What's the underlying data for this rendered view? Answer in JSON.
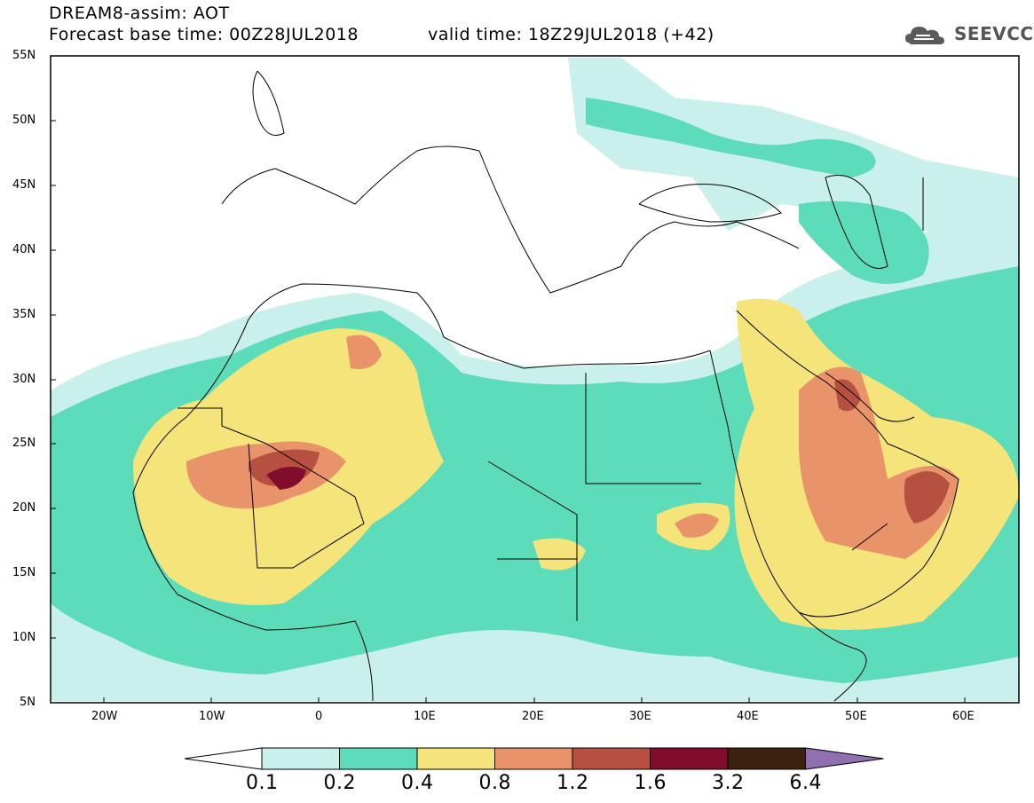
{
  "header": {
    "title": "DREAM8-assim: AOT",
    "base_time": "Forecast base time: 00Z28JUL2018",
    "valid_time": "valid time: 18Z29JUL2018 (+42)"
  },
  "logo": {
    "text": "SEEVCCC",
    "icon": "cloud-icon"
  },
  "map": {
    "lat_labels": [
      "55N",
      "50N",
      "45N",
      "40N",
      "35N",
      "30N",
      "25N",
      "20N",
      "15N",
      "10N",
      "5N"
    ],
    "lon_labels": [
      "20W",
      "10W",
      "0",
      "10E",
      "20E",
      "30E",
      "40E",
      "50E",
      "60E"
    ]
  },
  "colorbar": {
    "labels": [
      "0.1",
      "0.2",
      "0.4",
      "0.8",
      "1.2",
      "1.6",
      "3.2",
      "6.4"
    ],
    "colors": [
      "#c9f0ea",
      "#5cdcb8",
      "#f5e47a",
      "#e8936a",
      "#b65040",
      "#820c2c",
      "#3c2010",
      "#9070b0"
    ]
  }
}
